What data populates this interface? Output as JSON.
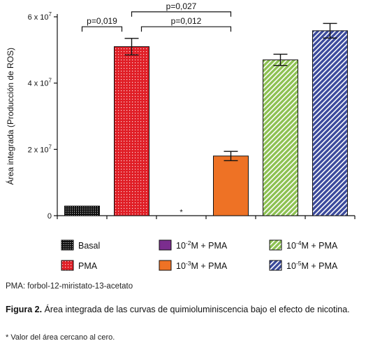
{
  "chart_data": {
    "type": "bar",
    "ylabel": "Área integrada (Producción de ROS)",
    "ylim": [
      0,
      60000000
    ],
    "y_ticks": [
      {
        "value": 0,
        "label": "0",
        "exp": ""
      },
      {
        "value": 20000000,
        "label": "2 x 10",
        "exp": "7"
      },
      {
        "value": 40000000,
        "label": "4 x 10",
        "exp": "7"
      },
      {
        "value": 60000000,
        "label": "6 x 10",
        "exp": "7"
      }
    ],
    "categories": [
      "Basal",
      "PMA",
      "10-2M + PMA",
      "10-3M + PMA",
      "10-4M + PMA",
      "10-5M + PMA"
    ],
    "values": [
      2900000,
      51000000,
      0,
      18000000,
      47000000,
      55800000
    ],
    "errors": [
      0,
      2500000,
      0,
      1400000,
      1700000,
      2200000
    ],
    "bar_colors": [
      "#1a1a1a",
      "#e01e26",
      "#7b2d8e",
      "#ee7225",
      "#8dc152",
      "#3b4a9c"
    ],
    "annotations": [
      {
        "text": "p=0,019",
        "from": 0,
        "to": 1,
        "level": 57000000
      },
      {
        "text": "p=0,012",
        "from": 1,
        "to": 3,
        "level": 57000000
      },
      {
        "text": "p=0,027",
        "from": 1,
        "to": 3,
        "level": 61500000
      },
      {
        "text": "*",
        "at": 2,
        "level": 1200000
      }
    ],
    "legend": [
      {
        "pre": "Basal",
        "sup": "",
        "post": ""
      },
      {
        "pre": "10",
        "sup": "-2",
        "post": "M + PMA"
      },
      {
        "pre": "10",
        "sup": "-4",
        "post": "M + PMA"
      },
      {
        "pre": "PMA",
        "sup": "",
        "post": ""
      },
      {
        "pre": "10",
        "sup": "-3",
        "post": "M + PMA"
      },
      {
        "pre": "10",
        "sup": "-5",
        "post": "M + PMA"
      }
    ],
    "legend_placement": "bottom"
  },
  "footnote_abbrev": "PMA: forbol-12-miristato-13-acetato",
  "caption_label": "Figura 2.",
  "caption_text": " Área integrada de las curvas de quimioluminiscencia bajo el efecto de nicotina.",
  "footnote_star": "* Valor del área cercano al cero."
}
